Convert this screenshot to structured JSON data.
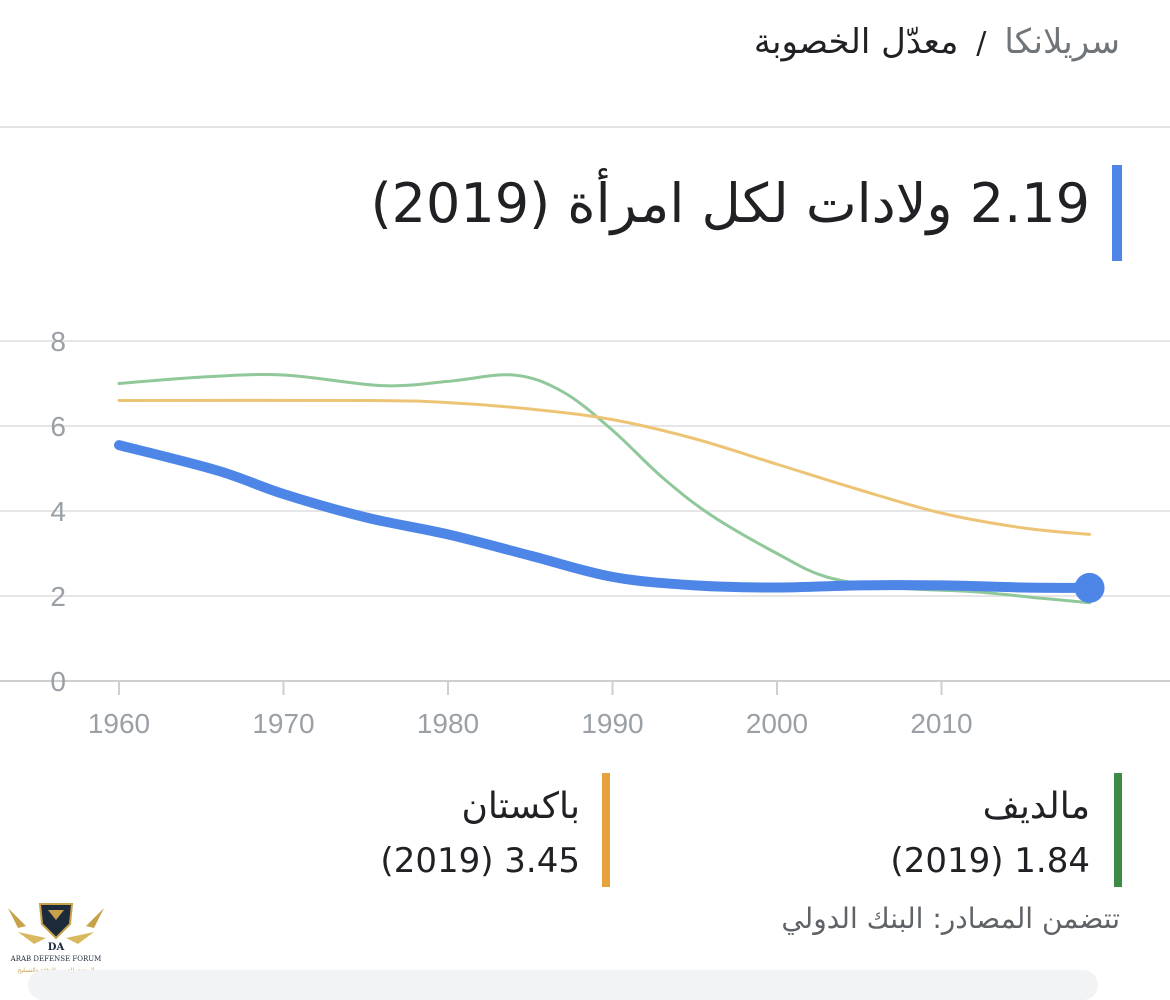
{
  "breadcrumb": {
    "country": "سريلانكا",
    "separator": "/",
    "metric": "معدّل الخصوبة"
  },
  "headline": {
    "text": "2.19 ولادات لكل امرأة (2019)",
    "accent_color": "#4e86e8"
  },
  "chart_data": {
    "type": "line",
    "xlim": [
      1960,
      2019
    ],
    "ylim": [
      0,
      8
    ],
    "x_ticks": [
      "1960",
      "1970",
      "1980",
      "1990",
      "2000",
      "2010"
    ],
    "y_ticks": [
      "0",
      "2",
      "4",
      "6",
      "8"
    ],
    "grid": true,
    "series": [
      {
        "name": "مالديف",
        "color": "#90c89a",
        "points": [
          [
            1960,
            7.0
          ],
          [
            1965,
            7.15
          ],
          [
            1970,
            7.2
          ],
          [
            1976,
            6.95
          ],
          [
            1980,
            7.05
          ],
          [
            1984,
            7.2
          ],
          [
            1987,
            6.8
          ],
          [
            1990,
            5.9
          ],
          [
            1993,
            4.8
          ],
          [
            1996,
            3.9
          ],
          [
            2000,
            3.0
          ],
          [
            2003,
            2.45
          ],
          [
            2007,
            2.2
          ],
          [
            2012,
            2.1
          ],
          [
            2016,
            1.95
          ],
          [
            2019,
            1.84
          ]
        ]
      },
      {
        "name": "باكستان",
        "color": "#edc476",
        "points": [
          [
            1960,
            6.6
          ],
          [
            1975,
            6.6
          ],
          [
            1980,
            6.55
          ],
          [
            1985,
            6.4
          ],
          [
            1990,
            6.15
          ],
          [
            1995,
            5.7
          ],
          [
            2000,
            5.1
          ],
          [
            2005,
            4.5
          ],
          [
            2010,
            3.95
          ],
          [
            2015,
            3.6
          ],
          [
            2019,
            3.45
          ]
        ]
      },
      {
        "name": "سريلانكا",
        "color": "#4e86e8",
        "points": [
          [
            1960,
            5.55
          ],
          [
            1966,
            4.95
          ],
          [
            1970,
            4.4
          ],
          [
            1975,
            3.85
          ],
          [
            1980,
            3.45
          ],
          [
            1985,
            2.95
          ],
          [
            1990,
            2.45
          ],
          [
            1995,
            2.25
          ],
          [
            2000,
            2.2
          ],
          [
            2005,
            2.25
          ],
          [
            2010,
            2.25
          ],
          [
            2015,
            2.2
          ],
          [
            2019,
            2.19
          ]
        ]
      }
    ]
  },
  "legend": [
    {
      "name": "مالديف",
      "value": "1.84 (2019)",
      "color": "#3d8b47"
    },
    {
      "name": "باكستان",
      "value": "3.45 (2019)",
      "color": "#e8a23c"
    }
  ],
  "sources": "تتضمن المصادر: البنك الدولي",
  "watermark": {
    "line1": "ARAB DEFENSE FORUM",
    "line2": "المنتدى العربي للدفاع والتسليح",
    "mark": "DA"
  }
}
